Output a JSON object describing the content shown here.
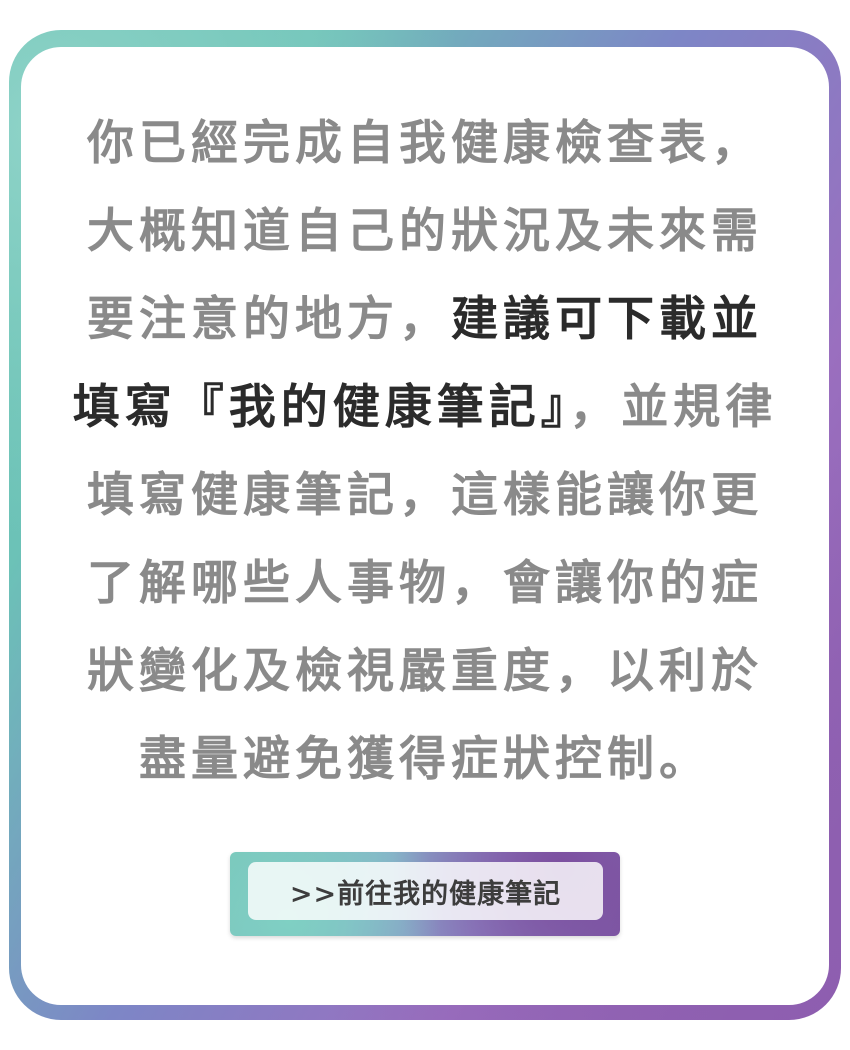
{
  "message": {
    "lines": [
      [
        "你已經完成自我健康檢查表，"
      ],
      [
        "大概知道自己的狀況及未來需"
      ],
      [
        "要注意的地方，",
        "建議可下載並"
      ],
      [
        "填寫『我的健康筆記』",
        "，並規律"
      ],
      [
        "填寫健康筆記，這樣能讓你更"
      ],
      [
        "了解哪些人事物，會讓你的症"
      ],
      [
        "狀變化及檢視嚴重度，以利於"
      ],
      [
        "盡量避免獲得症狀控制。"
      ]
    ]
  },
  "cta": {
    "label": ">>前往我的健康筆記"
  },
  "colors": {
    "body_text": "#8a8a8a",
    "emphasis_text": "#2b2b2b",
    "frame_teal": "#5fbfae",
    "frame_purple": "#8a5aab"
  }
}
